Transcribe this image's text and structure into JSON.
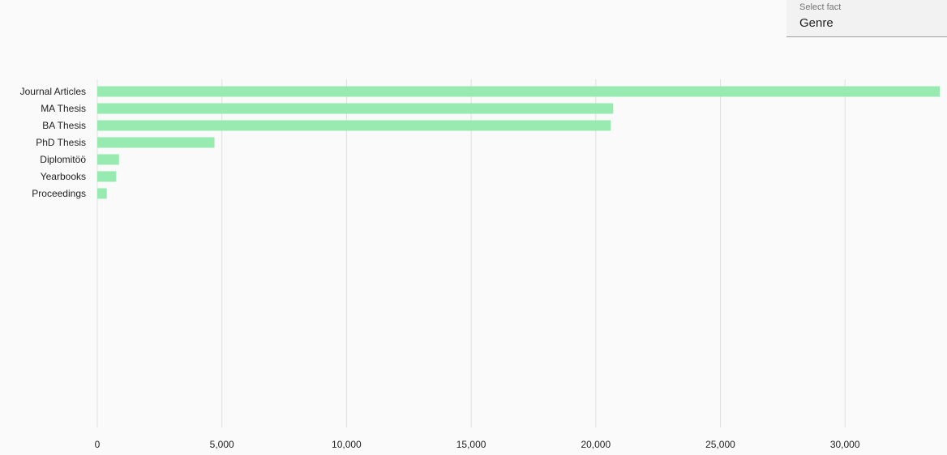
{
  "select_fact": {
    "label": "Select fact",
    "value": "Genre"
  },
  "colors": {
    "bar": "#98ebb0",
    "grid": "#e0e0e0"
  },
  "chart_data": {
    "type": "bar",
    "orientation": "horizontal",
    "categories": [
      "Journal Articles",
      "MA Thesis",
      "BA Thesis",
      "PhD Thesis",
      "Diplomitöö",
      "Yearbooks",
      "Proceedings"
    ],
    "values": [
      33800,
      20700,
      20600,
      4700,
      870,
      760,
      380
    ],
    "xlim": [
      0,
      33800
    ],
    "xticks": [
      0,
      5000,
      10000,
      15000,
      20000,
      25000,
      30000
    ],
    "xtick_labels": [
      "0",
      "5,000",
      "10,000",
      "15,000",
      "20,000",
      "25,000",
      "30,000"
    ],
    "grid": true
  }
}
